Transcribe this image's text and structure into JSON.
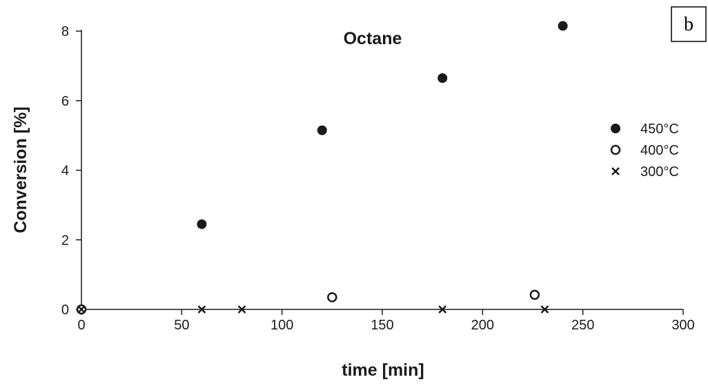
{
  "panel_label": "b",
  "chart_data": {
    "type": "scatter",
    "title": "Octane",
    "xlabel": "time [min]",
    "ylabel": "Conversion [%]",
    "xlim": [
      0,
      300
    ],
    "ylim": [
      0,
      8.2
    ],
    "xticks": [
      0,
      50,
      100,
      150,
      200,
      250,
      300
    ],
    "yticks": [
      0,
      2,
      4,
      6,
      8
    ],
    "grid": false,
    "legend_position": "right",
    "series": [
      {
        "name": "450°C",
        "marker": "filled-circle",
        "color": "#1a1a1a",
        "points": [
          [
            0,
            0.0
          ],
          [
            60,
            2.45
          ],
          [
            120,
            5.15
          ],
          [
            180,
            6.65
          ],
          [
            240,
            8.15
          ]
        ]
      },
      {
        "name": "400°C",
        "marker": "open-circle",
        "color": "#1a1a1a",
        "points": [
          [
            0,
            0.0
          ],
          [
            125,
            0.35
          ],
          [
            226,
            0.42
          ]
        ]
      },
      {
        "name": "300°C",
        "marker": "cross",
        "color": "#1a1a1a",
        "points": [
          [
            0,
            0.0
          ],
          [
            60,
            0.0
          ],
          [
            80,
            0.0
          ],
          [
            180,
            0.0
          ],
          [
            231,
            0.0
          ]
        ]
      }
    ]
  }
}
